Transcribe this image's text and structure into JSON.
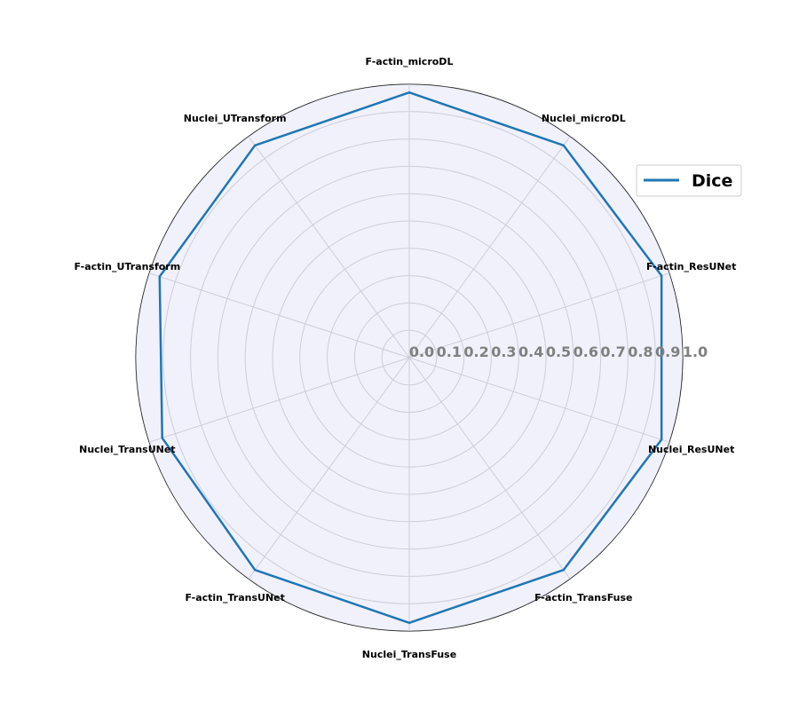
{
  "chart_data": {
    "type": "radar",
    "axes": [
      "F-actin_microDL",
      "Nuclei_microDL",
      "F-actin_ResUNet",
      "Nuclei_ResUNet",
      "F-actin_TransFuse",
      "Nuclei_TransFuse",
      "F-actin_TransUNet",
      "Nuclei_TransUNet",
      "F-actin_UTransform",
      "Nuclei_UTransform"
    ],
    "series": [
      {
        "name": "Dice",
        "values": [
          0.97,
          0.96,
          0.97,
          0.97,
          0.96,
          0.97,
          0.96,
          0.95,
          0.96,
          0.96
        ]
      }
    ],
    "rlim": [
      0,
      1.0
    ],
    "r_ticks": [
      "0.0",
      "0.1",
      "0.2",
      "0.3",
      "0.4",
      "0.5",
      "0.6",
      "0.7",
      "0.8",
      "0.9",
      "1.0"
    ],
    "grid": true,
    "legend_position": "top-right",
    "line_color": "#1f77b4",
    "fill_color": "#e6e6fa",
    "grid_color": "#b0b0b0"
  }
}
